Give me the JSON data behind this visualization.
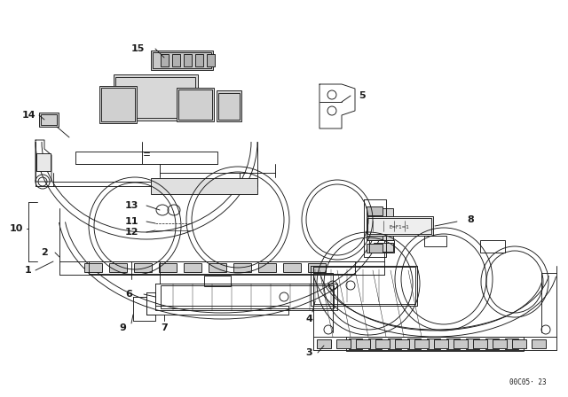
{
  "background_color": "#ffffff",
  "line_color": "#1a1a1a",
  "watermark": "00C05· 23",
  "fig_width": 6.4,
  "fig_height": 4.48,
  "dpi": 100,
  "lw": 0.65
}
